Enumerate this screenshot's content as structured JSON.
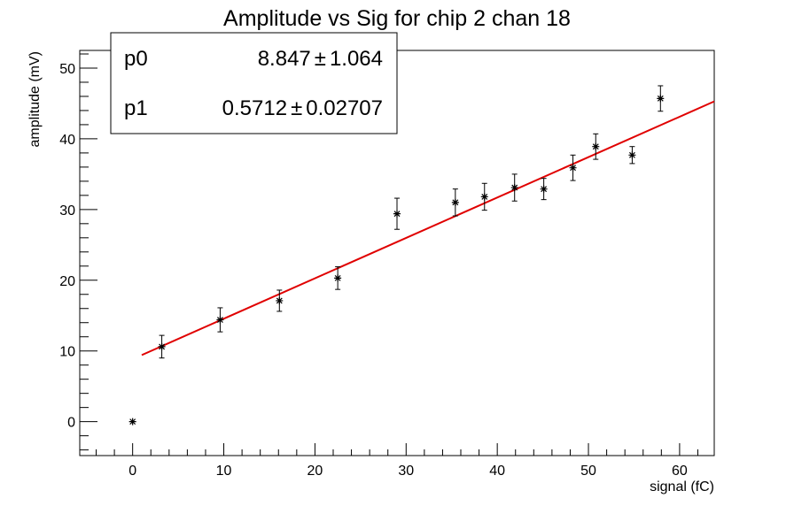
{
  "chart_data": {
    "type": "scatter",
    "title": "Amplitude vs Sig for chip 2 chan 18",
    "xlabel": "signal (fC)",
    "ylabel": "amplitude (mV)",
    "xlim": [
      -5.8,
      63.8
    ],
    "ylim": [
      -4.8,
      52.5
    ],
    "xticks": [
      0,
      10,
      20,
      30,
      40,
      50,
      60
    ],
    "yticks": [
      0,
      10,
      20,
      30,
      40,
      50
    ],
    "grid": false,
    "points": [
      {
        "x": 0.0,
        "y": 0.0,
        "err": 0.0
      },
      {
        "x": 3.2,
        "y": 10.6,
        "err": 1.6
      },
      {
        "x": 9.6,
        "y": 14.4,
        "err": 1.7
      },
      {
        "x": 16.1,
        "y": 17.1,
        "err": 1.5
      },
      {
        "x": 22.5,
        "y": 20.3,
        "err": 1.6
      },
      {
        "x": 29.0,
        "y": 29.4,
        "err": 2.2
      },
      {
        "x": 35.4,
        "y": 31.0,
        "err": 1.9
      },
      {
        "x": 38.6,
        "y": 31.8,
        "err": 1.9
      },
      {
        "x": 41.9,
        "y": 33.1,
        "err": 1.9
      },
      {
        "x": 45.1,
        "y": 32.9,
        "err": 1.5
      },
      {
        "x": 48.3,
        "y": 35.9,
        "err": 1.8
      },
      {
        "x": 50.8,
        "y": 38.9,
        "err": 1.8
      },
      {
        "x": 54.8,
        "y": 37.7,
        "err": 1.2
      },
      {
        "x": 57.9,
        "y": 45.7,
        "err": 1.8
      }
    ],
    "fit": {
      "function": "pol1",
      "color": "#e00000",
      "x_range": [
        1.0,
        63.8
      ],
      "params": [
        {
          "name": "p0",
          "value": "8.847",
          "error": "1.064",
          "num": 8.847
        },
        {
          "name": "p1",
          "value": "0.5712",
          "error": "0.02707",
          "num": 0.5712
        }
      ]
    }
  },
  "stats_box": {
    "pm": "±"
  }
}
